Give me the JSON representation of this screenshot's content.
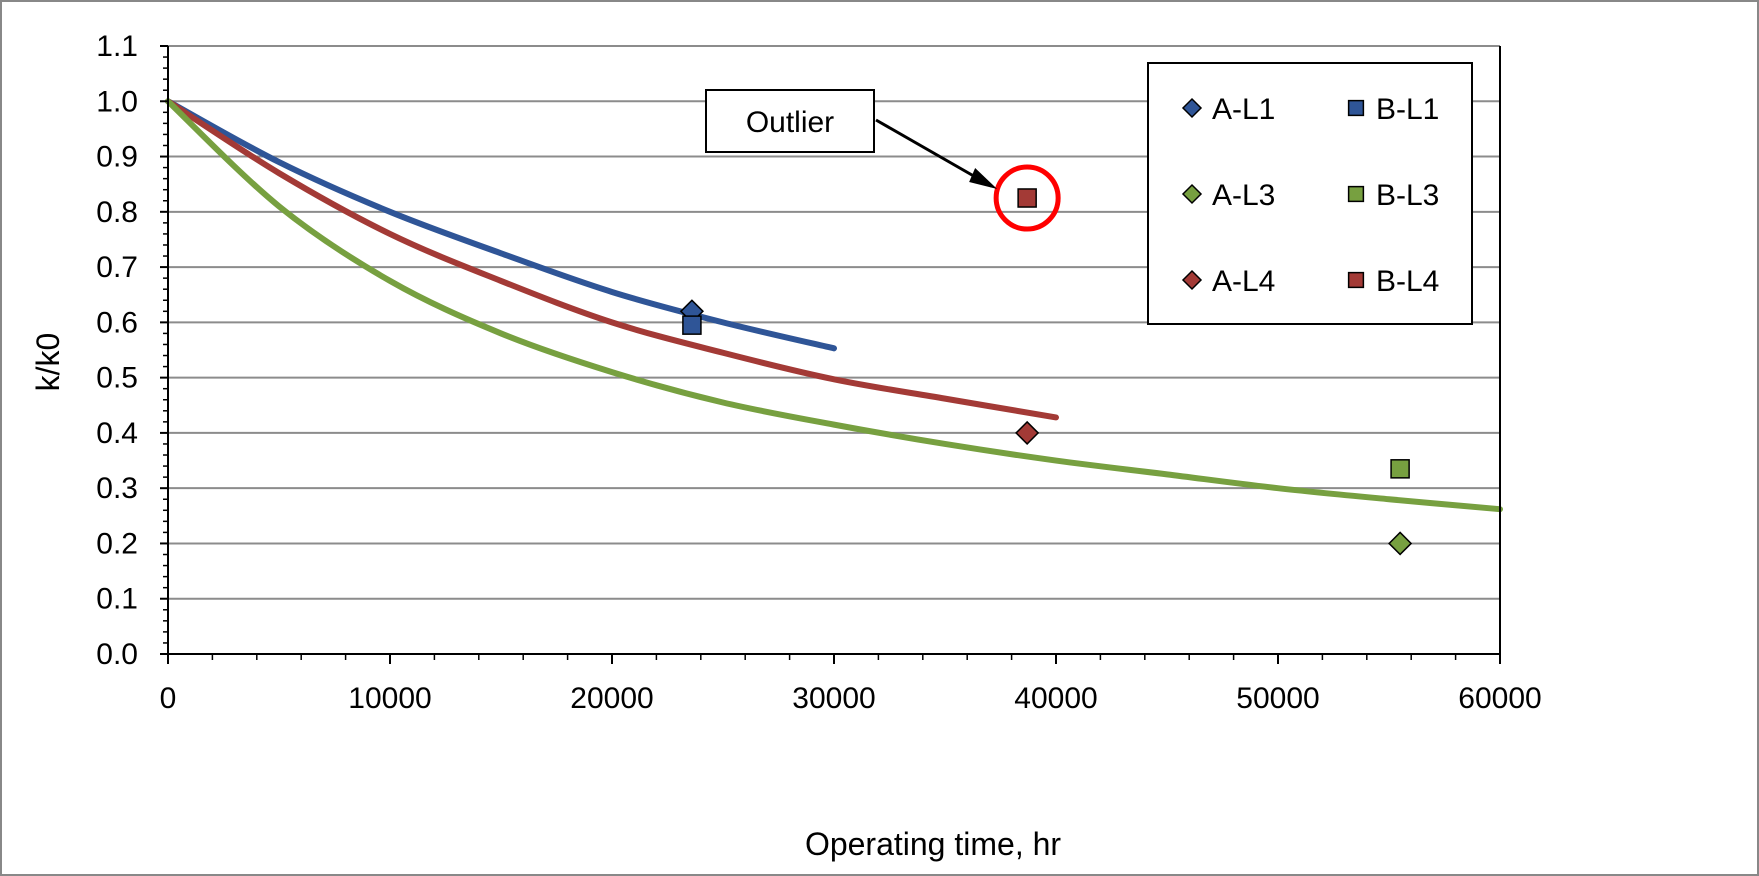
{
  "chart_data": {
    "type": "scatter",
    "xlabel": "Operating time, hr",
    "ylabel": "k/k0",
    "xlim": [
      0,
      60000
    ],
    "ylim": [
      0,
      1.1
    ],
    "x_ticks": [
      0,
      10000,
      20000,
      30000,
      40000,
      50000,
      60000
    ],
    "x_tick_labels": [
      "0",
      "10000",
      "20000",
      "30000",
      "40000",
      "50000",
      "60000"
    ],
    "y_ticks": [
      0,
      0.1,
      0.2,
      0.3,
      0.4,
      0.5,
      0.6,
      0.7,
      0.8,
      0.9,
      1.0,
      1.1
    ],
    "y_tick_labels": [
      "0.0",
      "0.1",
      "0.2",
      "0.3",
      "0.4",
      "0.5",
      "0.6",
      "0.7",
      "0.8",
      "0.9",
      "1.0",
      "1.1"
    ],
    "grid": "horizontal",
    "legend_position": "top-right",
    "series": [
      {
        "name": "A-L1",
        "marker": "diamond",
        "color": "#2F5597",
        "points": [
          [
            23600,
            0.62
          ]
        ]
      },
      {
        "name": "B-L1",
        "marker": "square",
        "color": "#2F5597",
        "points": [
          [
            23600,
            0.595
          ]
        ]
      },
      {
        "name": "A-L3",
        "marker": "diamond",
        "color": "#77A040",
        "points": [
          [
            55500,
            0.2
          ]
        ]
      },
      {
        "name": "B-L3",
        "marker": "square",
        "color": "#77A040",
        "points": [
          [
            55500,
            0.335
          ]
        ]
      },
      {
        "name": "A-L4",
        "marker": "diamond",
        "color": "#A33A36",
        "points": [
          [
            38700,
            0.4
          ]
        ]
      },
      {
        "name": "B-L4",
        "marker": "square",
        "color": "#A33A36",
        "points": [
          [
            38700,
            0.825
          ]
        ]
      }
    ],
    "curves": [
      {
        "color": "#2F5597",
        "x": [
          0,
          5000,
          10000,
          15000,
          20000,
          25000,
          30000
        ],
        "y": [
          1.0,
          0.89,
          0.8,
          0.725,
          0.655,
          0.6,
          0.553
        ]
      },
      {
        "color": "#A33A36",
        "x": [
          0,
          5000,
          10000,
          15000,
          20000,
          25000,
          30000,
          35000,
          40000
        ],
        "y": [
          1.0,
          0.87,
          0.76,
          0.675,
          0.6,
          0.545,
          0.497,
          0.462,
          0.428
        ]
      },
      {
        "color": "#77A040",
        "x": [
          0,
          5000,
          10000,
          15000,
          20000,
          25000,
          30000,
          35000,
          40000,
          45000,
          50000,
          55000,
          60000
        ],
        "y": [
          1.0,
          0.81,
          0.675,
          0.58,
          0.51,
          0.455,
          0.415,
          0.38,
          0.35,
          0.325,
          0.3,
          0.28,
          0.262
        ]
      }
    ],
    "annotation": {
      "text": "Outlier",
      "target": [
        38700,
        0.825
      ],
      "highlight_color": "#FF0000"
    }
  }
}
